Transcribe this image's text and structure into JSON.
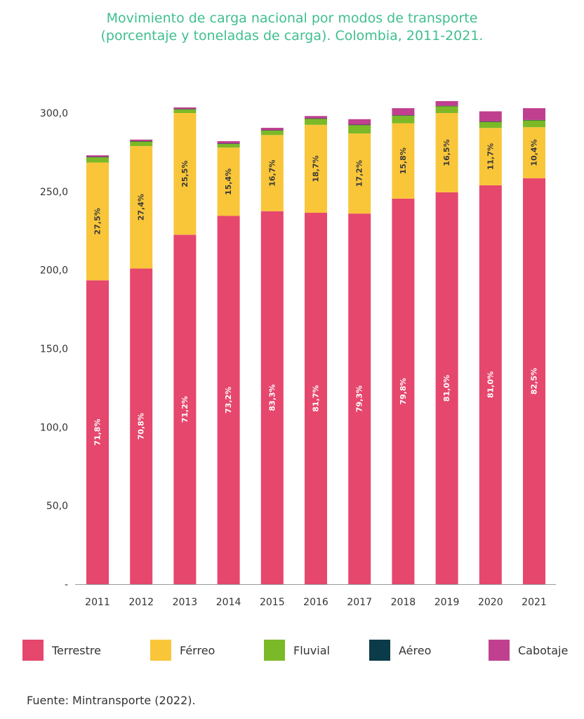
{
  "title": {
    "line1": "Movimiento de carga nacional por modos de transporte",
    "line2": "(porcentaje y toneladas de carga). Colombia, 2011-2021."
  },
  "source": "Fuente: Mintransporte (2022).",
  "colors": {
    "Terrestre": "#e6476d",
    "Férreo": "#f9c63a",
    "Fluvial": "#7bb928",
    "Aéreo": "#0b3b48",
    "Cabotaje": "#c0408f"
  },
  "chart_data": {
    "type": "bar",
    "stacked": true,
    "categories": [
      "2011",
      "2012",
      "2013",
      "2014",
      "2015",
      "2016",
      "2017",
      "2018",
      "2019",
      "2020",
      "2021"
    ],
    "ylim": [
      0,
      300
    ],
    "yticks": [
      "-",
      "50,0",
      "100,0",
      "150,0",
      "200,0",
      "250,0",
      "300,0"
    ],
    "yticks_values": [
      0,
      50,
      100,
      150,
      200,
      250,
      300
    ],
    "grid": false,
    "legend_position": "bottom",
    "series": [
      {
        "name": "Terrestre",
        "values": [
          193.5,
          201,
          222.5,
          234.5,
          237.5,
          236.5,
          236,
          245.5,
          249.5,
          254,
          258.5
        ],
        "labels": [
          "71,8%",
          "70,8%",
          "71,2%",
          "73,2%",
          "83,3%",
          "81,7%",
          "79,3%",
          "79,8%",
          "81,0%",
          "81,0%",
          "82,5%"
        ]
      },
      {
        "name": "Férreo",
        "values": [
          75,
          78,
          77.5,
          43.5,
          48.5,
          56,
          51,
          48,
          50.5,
          36.5,
          32.5
        ],
        "labels": [
          "27,5%",
          "27,4%",
          "25,5%",
          "15,4%",
          "16,7%",
          "18,7%",
          "17,2%",
          "15,8%",
          "16,5%",
          "11,7%",
          "10,4%"
        ]
      },
      {
        "name": "Fluvial",
        "values": [
          3.5,
          3,
          2.5,
          2.5,
          3,
          4,
          5.5,
          5,
          4.5,
          4,
          4.5
        ],
        "labels": []
      },
      {
        "name": "Aéreo",
        "values": [
          0.1,
          0.1,
          0.1,
          0.1,
          0.1,
          0.1,
          0.1,
          0.1,
          0.1,
          0.1,
          0.1
        ],
        "labels": []
      },
      {
        "name": "Cabotaje",
        "values": [
          1,
          1,
          1,
          1.5,
          1.5,
          1.5,
          3.5,
          4.5,
          3,
          6.5,
          7.5
        ],
        "labels": []
      }
    ]
  }
}
